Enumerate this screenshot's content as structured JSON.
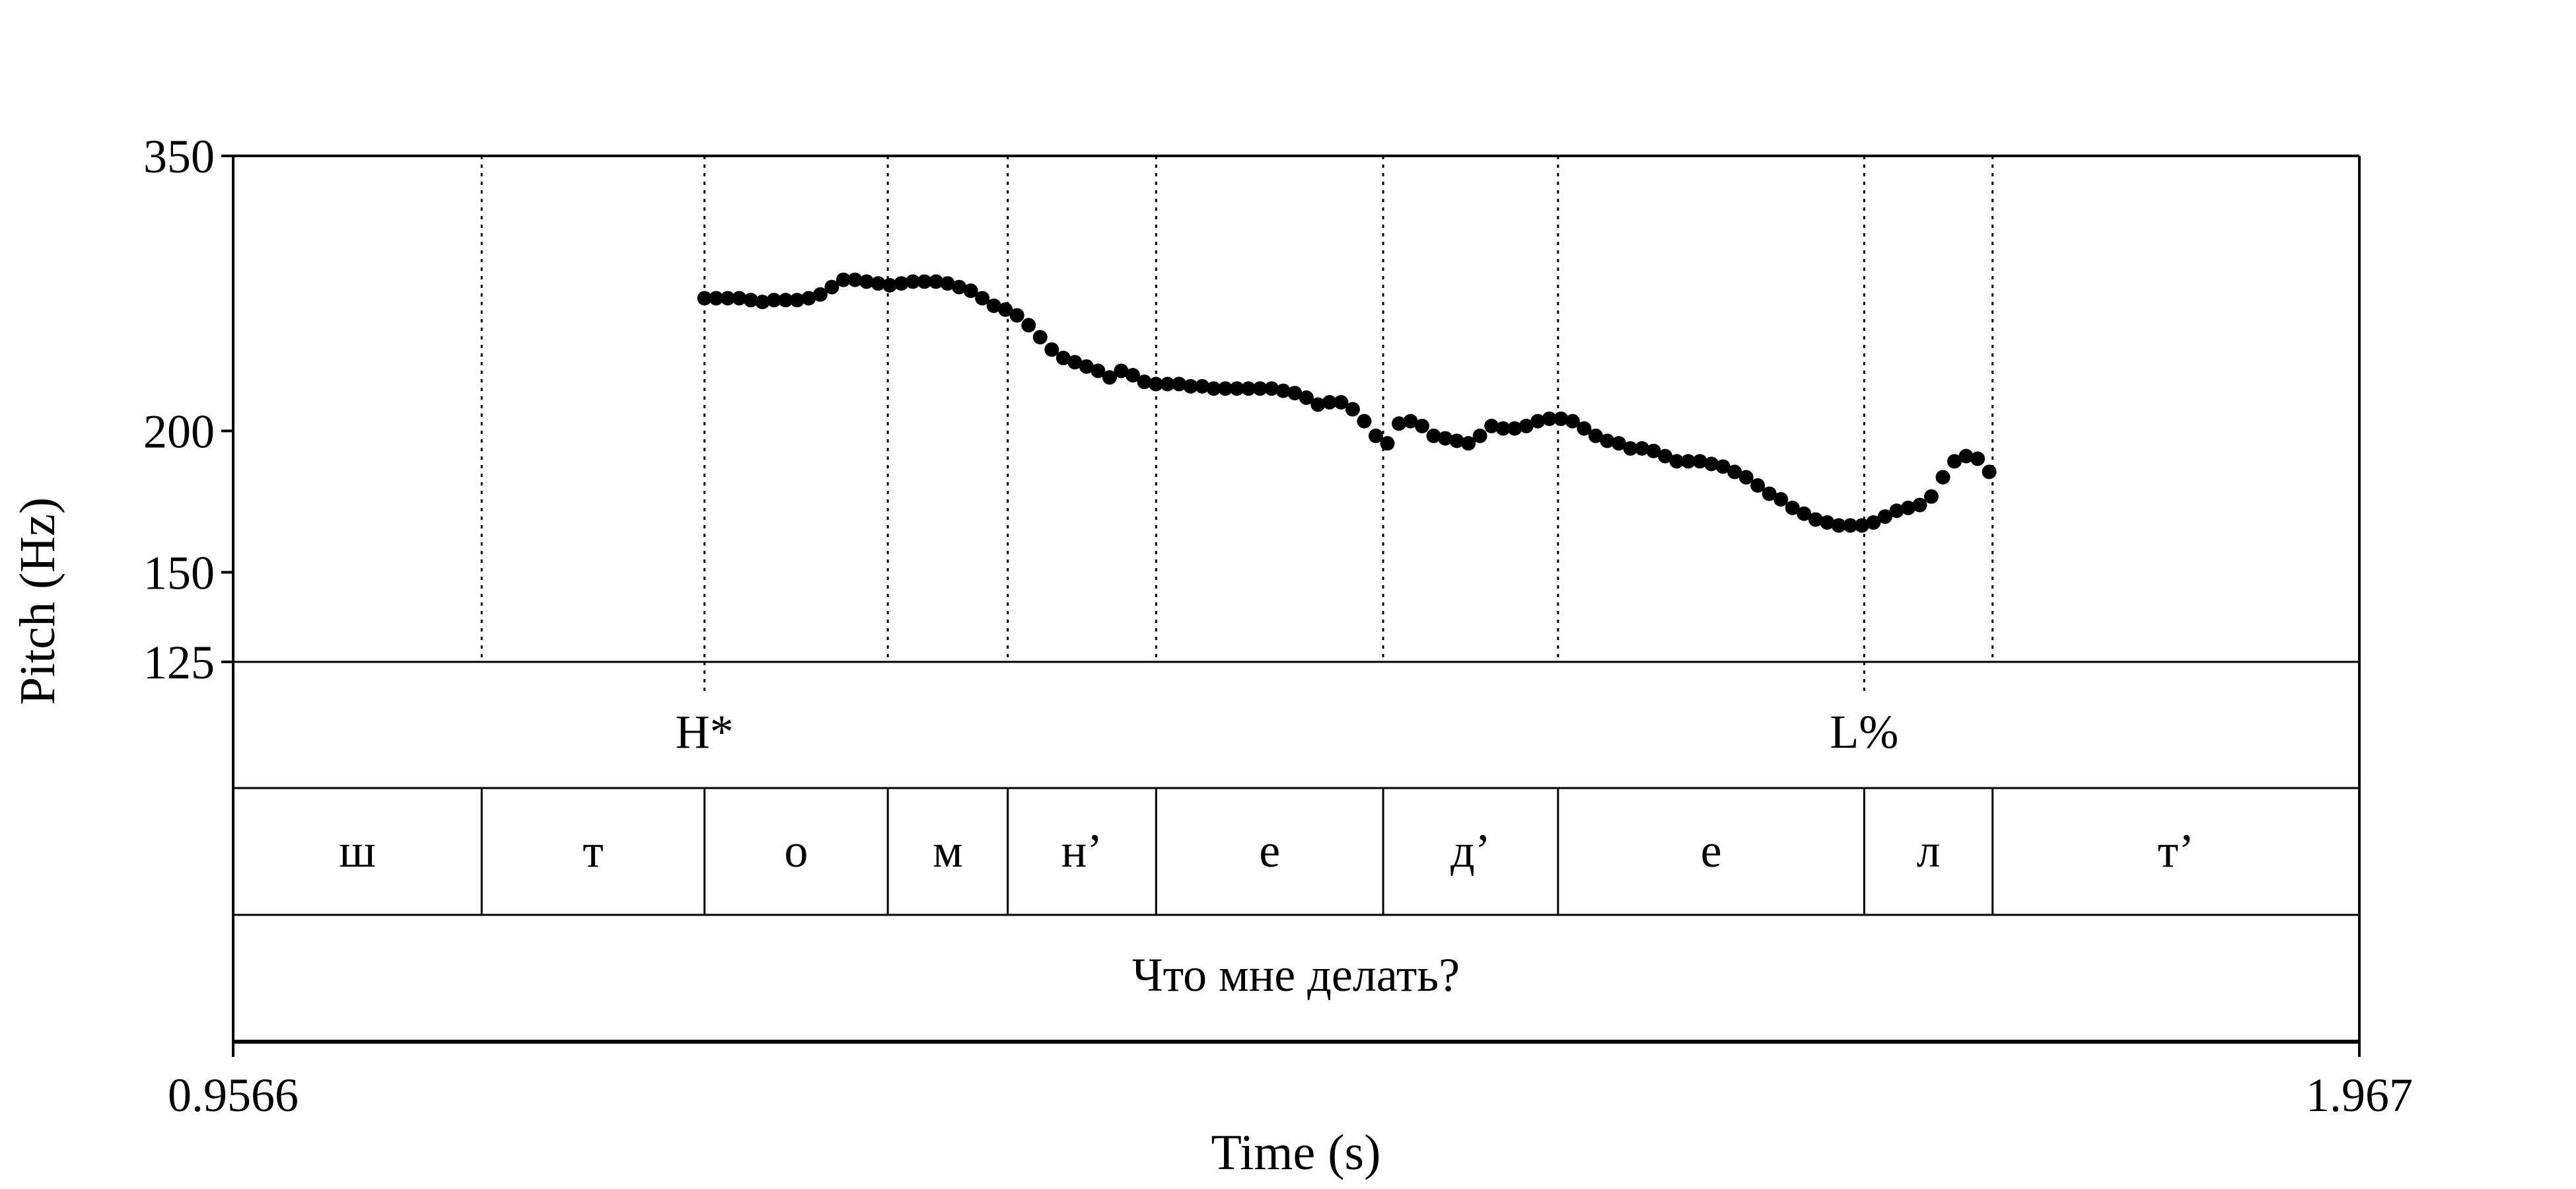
{
  "chart_data": {
    "type": "scatter",
    "x_axis": {
      "title": "Time (s)",
      "min_label": "0.9566",
      "max_label": "1.967",
      "range": [
        0.9566,
        1.967
      ]
    },
    "y_axis": {
      "title": "Pitch (Hz)",
      "scale": "log",
      "range": [
        125,
        350
      ],
      "ticks": [
        {
          "value": 350,
          "label": "350"
        },
        {
          "value": 200,
          "label": "200"
        },
        {
          "value": 150,
          "label": "150"
        },
        {
          "value": 125,
          "label": "125"
        }
      ]
    },
    "series": [
      {
        "marker": "filled-circle",
        "color": "#000000",
        "points": [
          [
            1.1806,
            262
          ],
          [
            1.1861,
            262
          ],
          [
            1.1916,
            262
          ],
          [
            1.1971,
            262
          ],
          [
            1.2026,
            261
          ],
          [
            1.2081,
            260
          ],
          [
            1.2136,
            261
          ],
          [
            1.2191,
            261
          ],
          [
            1.2246,
            261
          ],
          [
            1.2301,
            262
          ],
          [
            1.2356,
            264
          ],
          [
            1.2411,
            268
          ],
          [
            1.2466,
            272
          ],
          [
            1.2521,
            272
          ],
          [
            1.2576,
            271
          ],
          [
            1.2631,
            270
          ],
          [
            1.2686,
            269
          ],
          [
            1.2741,
            270
          ],
          [
            1.2796,
            271
          ],
          [
            1.2851,
            271
          ],
          [
            1.2906,
            271
          ],
          [
            1.2961,
            270
          ],
          [
            1.3016,
            268
          ],
          [
            1.3071,
            266
          ],
          [
            1.3126,
            262
          ],
          [
            1.3181,
            258
          ],
          [
            1.3236,
            256
          ],
          [
            1.3291,
            253
          ],
          [
            1.3346,
            248
          ],
          [
            1.3401,
            242
          ],
          [
            1.3456,
            236
          ],
          [
            1.3511,
            232
          ],
          [
            1.3566,
            230
          ],
          [
            1.3621,
            228
          ],
          [
            1.3676,
            226
          ],
          [
            1.3731,
            223
          ],
          [
            1.3786,
            226
          ],
          [
            1.3841,
            224
          ],
          [
            1.3896,
            221
          ],
          [
            1.3951,
            220
          ],
          [
            1.4006,
            220
          ],
          [
            1.4061,
            220
          ],
          [
            1.4116,
            219
          ],
          [
            1.4171,
            219
          ],
          [
            1.4226,
            218
          ],
          [
            1.4281,
            218
          ],
          [
            1.4336,
            218
          ],
          [
            1.4391,
            218
          ],
          [
            1.4446,
            218
          ],
          [
            1.4501,
            218
          ],
          [
            1.4556,
            217
          ],
          [
            1.4611,
            216
          ],
          [
            1.4666,
            214
          ],
          [
            1.4721,
            211
          ],
          [
            1.4776,
            212
          ],
          [
            1.4831,
            212
          ],
          [
            1.4886,
            209
          ],
          [
            1.4941,
            204
          ],
          [
            1.4996,
            198
          ],
          [
            1.5051,
            195
          ],
          [
            1.5106,
            203
          ],
          [
            1.5161,
            204
          ],
          [
            1.5216,
            202
          ],
          [
            1.5271,
            198
          ],
          [
            1.5326,
            197
          ],
          [
            1.5381,
            196
          ],
          [
            1.5436,
            195
          ],
          [
            1.5491,
            198
          ],
          [
            1.5546,
            202
          ],
          [
            1.5601,
            201
          ],
          [
            1.5656,
            201
          ],
          [
            1.5711,
            202
          ],
          [
            1.5766,
            204
          ],
          [
            1.5821,
            205
          ],
          [
            1.5876,
            205
          ],
          [
            1.5931,
            204
          ],
          [
            1.5986,
            201
          ],
          [
            1.6041,
            198
          ],
          [
            1.6096,
            196
          ],
          [
            1.6151,
            195
          ],
          [
            1.6206,
            193
          ],
          [
            1.6261,
            193
          ],
          [
            1.6316,
            192
          ],
          [
            1.6371,
            190
          ],
          [
            1.6426,
            188
          ],
          [
            1.6481,
            188
          ],
          [
            1.6536,
            188
          ],
          [
            1.6591,
            187
          ],
          [
            1.6646,
            186
          ],
          [
            1.6701,
            184
          ],
          [
            1.6756,
            182
          ],
          [
            1.6811,
            179
          ],
          [
            1.6866,
            176
          ],
          [
            1.6921,
            174
          ],
          [
            1.6976,
            171
          ],
          [
            1.7031,
            169
          ],
          [
            1.7086,
            167
          ],
          [
            1.7141,
            166
          ],
          [
            1.7196,
            165
          ],
          [
            1.7251,
            165
          ],
          [
            1.7306,
            165
          ],
          [
            1.7361,
            166
          ],
          [
            1.7416,
            168
          ],
          [
            1.7471,
            170
          ],
          [
            1.7526,
            171
          ],
          [
            1.7581,
            172
          ],
          [
            1.7636,
            175
          ],
          [
            1.7691,
            182
          ],
          [
            1.7746,
            188
          ],
          [
            1.7801,
            190
          ],
          [
            1.7856,
            189
          ],
          [
            1.7911,
            184
          ]
        ]
      }
    ],
    "grid": "dotted vertical lines at tier boundaries",
    "legend": "none"
  },
  "tiers": {
    "tones": [
      {
        "label": "H*",
        "time": 1.1806
      },
      {
        "label": "L%",
        "time": 1.7317
      }
    ],
    "segments": {
      "boundaries": [
        1.0747,
        1.1806,
        1.2677,
        1.3247,
        1.3952,
        1.5031,
        1.5862,
        1.7317,
        1.7927
      ],
      "labels": [
        "ш",
        "т",
        "о",
        "м",
        "н’",
        "е",
        "д’",
        "е",
        "л",
        "т’"
      ]
    },
    "sentence": {
      "label": "Что мне делать?"
    }
  }
}
